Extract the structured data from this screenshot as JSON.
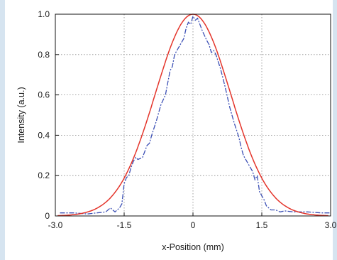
{
  "chart_data": {
    "type": "line",
    "title": "",
    "xlabel": "x-Position (mm)",
    "ylabel": "Intensity (a.u.)",
    "xlim": [
      -3.0,
      3.0
    ],
    "ylim": [
      0,
      1.0
    ],
    "x_ticks": [
      "-3.0",
      "-1.5",
      "0",
      "1.5",
      "3.0"
    ],
    "y_ticks": [
      "0",
      "0.2",
      "0.4",
      "0.6",
      "0.8",
      "1.0"
    ],
    "grid": "dotted",
    "legend": "none",
    "series": [
      {
        "color": "#3b4fb5",
        "style": "dashed",
        "x": [
          -2.9,
          -2.6,
          -2.3,
          -2.1,
          -1.9,
          -1.8,
          -1.75,
          -1.7,
          -1.6,
          -1.55,
          -1.5,
          -1.45,
          -1.4,
          -1.35,
          -1.3,
          -1.25,
          -1.2,
          -1.1,
          -1.0,
          -0.95,
          -0.9,
          -0.8,
          -0.7,
          -0.6,
          -0.5,
          -0.45,
          -0.4,
          -0.3,
          -0.2,
          -0.15,
          -0.1,
          -0.05,
          0.0,
          0.05,
          0.1,
          0.15,
          0.2,
          0.3,
          0.35,
          0.4,
          0.45,
          0.5,
          0.6,
          0.7,
          0.8,
          0.9,
          1.0,
          1.05,
          1.1,
          1.2,
          1.3,
          1.35,
          1.4,
          1.45,
          1.5,
          1.55,
          1.6,
          1.7,
          1.8,
          1.9,
          2.0,
          2.2,
          2.5,
          2.8,
          3.0
        ],
        "y": [
          0.015,
          0.015,
          0.01,
          0.015,
          0.02,
          0.04,
          0.03,
          0.02,
          0.04,
          0.06,
          0.16,
          0.19,
          0.2,
          0.24,
          0.27,
          0.29,
          0.28,
          0.29,
          0.35,
          0.36,
          0.4,
          0.47,
          0.55,
          0.6,
          0.72,
          0.74,
          0.8,
          0.84,
          0.88,
          0.93,
          0.96,
          0.95,
          0.99,
          0.97,
          0.98,
          0.95,
          0.92,
          0.87,
          0.85,
          0.81,
          0.82,
          0.8,
          0.73,
          0.64,
          0.54,
          0.46,
          0.39,
          0.34,
          0.3,
          0.26,
          0.22,
          0.18,
          0.2,
          0.12,
          0.1,
          0.08,
          0.05,
          0.03,
          0.03,
          0.02,
          0.025,
          0.02,
          0.02,
          0.015,
          0.015
        ]
      },
      {
        "color": "#e4352b",
        "style": "solid",
        "fit": "gaussian",
        "amplitude": 1.0,
        "center": 0.0,
        "sigma": 0.82
      }
    ]
  }
}
